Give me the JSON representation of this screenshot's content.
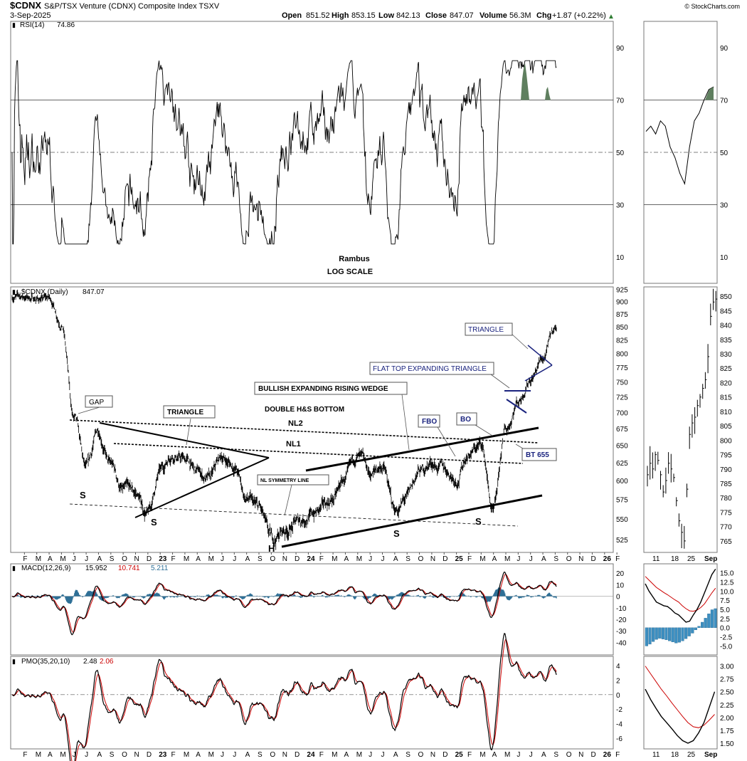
{
  "header": {
    "symbol": "$CDNX",
    "name": "S&P/TSX Venture (CDNX) Composite Index TSXV",
    "date": "3-Sep-2025",
    "open_label": "Open",
    "open": "851.52",
    "high_label": "High",
    "high": "853.15",
    "low_label": "Low",
    "low": "842.13",
    "close_label": "Close",
    "close": "847.07",
    "volume_label": "Volume",
    "volume": "56.3M",
    "chg_label": "Chg",
    "chg": "+1.87 (+0.22%)",
    "watermark": "© StockCharts.com"
  },
  "colors": {
    "price": "#000000",
    "signal": "#cc0000",
    "hist": "#2e6f96",
    "rsi_over": "#5f7f5f",
    "rsi_under": "#9a7b73",
    "blue_ann": "#1a237e",
    "pmo_signal_label": "#cc0000",
    "macd_signal_label": "#cc0000",
    "macd_hist_label": "#2e6f96"
  },
  "chart_data": [
    {
      "type": "line",
      "id": "rsi",
      "title": "RSI(14)",
      "title_value": "74.86",
      "yticks": [
        10,
        30,
        50,
        70,
        90
      ],
      "ylim": [
        0,
        100
      ],
      "reference_lines": [
        30,
        50,
        70
      ],
      "note_line1": "Rambus",
      "note_line2": "LOG SCALE"
    },
    {
      "type": "line",
      "id": "price",
      "title": "$CDNX (Daily)",
      "title_value": "847.07",
      "scale": "log",
      "yticks": [
        525,
        550,
        575,
        600,
        625,
        650,
        675,
        700,
        725,
        750,
        775,
        800,
        825,
        850,
        875,
        900,
        925
      ],
      "xticks": [
        "F",
        "M",
        "A",
        "M",
        "J",
        "J",
        "A",
        "S",
        "O",
        "N",
        "D",
        "23",
        "F",
        "M",
        "A",
        "M",
        "J",
        "J",
        "A",
        "S",
        "O",
        "N",
        "D",
        "24",
        "F",
        "M",
        "A",
        "M",
        "J",
        "J",
        "A",
        "S",
        "O",
        "N",
        "D",
        "25",
        "F",
        "M",
        "A",
        "M",
        "J",
        "J",
        "A",
        "S",
        "O",
        "N",
        "D",
        "26",
        "F"
      ],
      "x_bold": [
        "23",
        "24",
        "25",
        "26"
      ],
      "series": [
        {
          "x": [
            "2022-01",
            "2022-04",
            "2022-05",
            "2022-06",
            "2022-07",
            "2022-08",
            "2022-09",
            "2022-10",
            "2022-11",
            "2022-12",
            "2023-01",
            "2023-02",
            "2023-03",
            "2023-04",
            "2023-05",
            "2023-06",
            "2023-07",
            "2023-08",
            "2023-09",
            "2023-10",
            "2023-11",
            "2023-12",
            "2024-01",
            "2024-02",
            "2024-03",
            "2024-04",
            "2024-05",
            "2024-06",
            "2024-07",
            "2024-08",
            "2024-09",
            "2024-10",
            "2024-11",
            "2024-12",
            "2025-01",
            "2025-02",
            "2025-03",
            "2025-04",
            "2025-05",
            "2025-06",
            "2025-07",
            "2025-08",
            "2025-09"
          ],
          "values": [
            910,
            905,
            860,
            690,
            610,
            670,
            620,
            585,
            580,
            555,
            610,
            640,
            630,
            610,
            600,
            630,
            620,
            575,
            560,
            520,
            535,
            545,
            555,
            560,
            575,
            600,
            630,
            605,
            620,
            560,
            575,
            610,
            625,
            615,
            605,
            640,
            650,
            555,
            670,
            720,
            760,
            790,
            847
          ]
        }
      ],
      "annotations": [
        "GAP",
        "TRIANGLE",
        "BULLISH EXPANDING RISING WEDGE",
        "DOUBLE H&S BOTTOM",
        "NL2",
        "NL1",
        "NL SYMMETRY LINE",
        "FBO",
        "BO",
        "FLAT TOP EXPANDING TRIANGLE",
        "TRIANGLE",
        "BT 655",
        "S",
        "S",
        "H",
        "S",
        "S"
      ]
    },
    {
      "type": "line",
      "id": "macd",
      "title": "MACD(12,26,9)",
      "value_macd": "15.952",
      "value_signal": "10.741",
      "value_hist": "5.211",
      "yticks": [
        20,
        10,
        0,
        -10,
        -20,
        -30,
        -40
      ]
    },
    {
      "type": "line",
      "id": "pmo",
      "title": "PMO(35,20,10)",
      "value_pmo": "2.48",
      "value_signal": "2.06",
      "yticks": [
        4,
        2,
        0,
        -2,
        -4,
        -6
      ]
    },
    {
      "type": "bar",
      "id": "inset_price",
      "yticks": [
        765,
        770,
        775,
        780,
        785,
        790,
        795,
        800,
        805,
        810,
        815,
        820,
        825,
        830,
        835,
        840,
        845,
        850
      ],
      "xticks": [
        "11",
        "18",
        "25",
        "Sep"
      ]
    },
    {
      "type": "line",
      "id": "inset_rsi",
      "yticks": [
        10,
        30,
        50,
        70,
        90
      ]
    },
    {
      "type": "line",
      "id": "inset_macd",
      "yticks": [
        "15.0",
        "12.5",
        "10.0",
        "7.5",
        "5.0",
        "2.5",
        "0.0",
        "-2.5",
        "-5.0"
      ]
    },
    {
      "type": "line",
      "id": "inset_pmo",
      "yticks": [
        "3.00",
        "2.75",
        "2.50",
        "2.25",
        "2.00",
        "1.75",
        "1.50"
      ]
    }
  ]
}
